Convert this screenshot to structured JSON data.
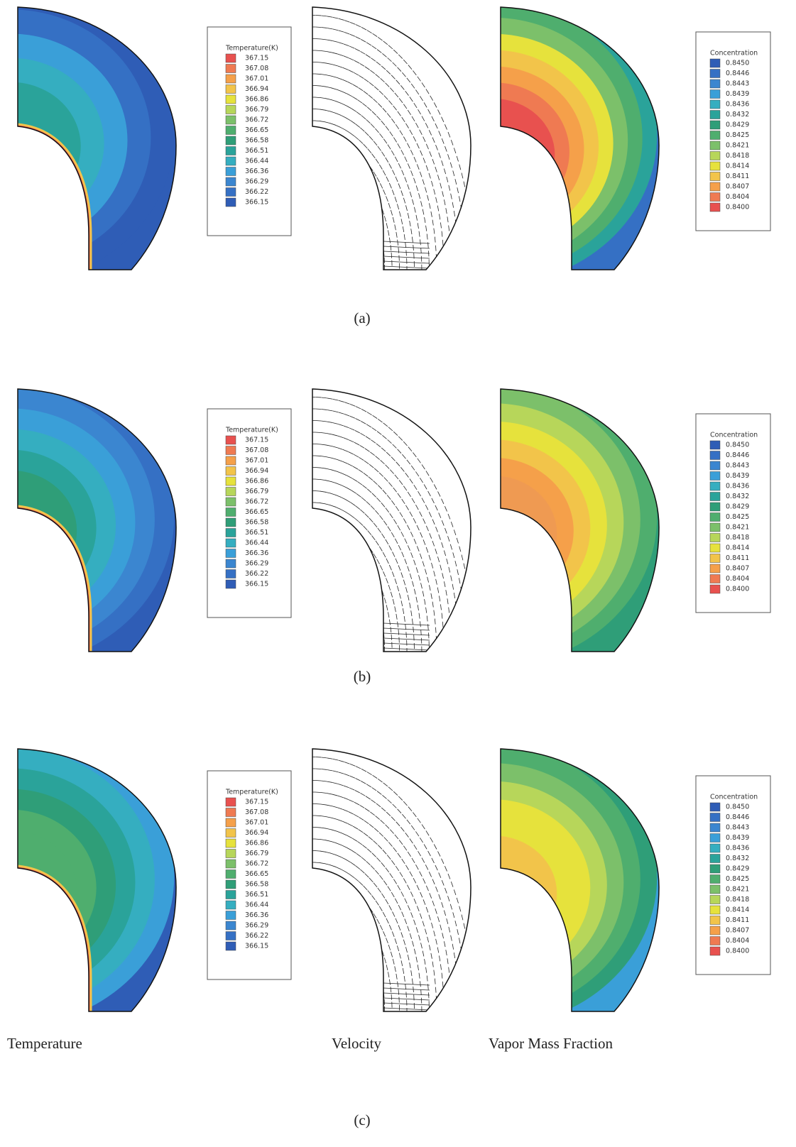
{
  "panels": [
    {
      "label": "(a)",
      "temperature_legend": {
        "title": "Temperature(K)",
        "labels": [
          "367.15",
          "367.08",
          "367.01",
          "366.94",
          "366.86",
          "366.79",
          "366.72",
          "366.65",
          "366.58",
          "366.51",
          "366.44",
          "366.36",
          "366.29",
          "366.22",
          "366.15"
        ]
      },
      "concentration_legend": {
        "title": "Concentration",
        "labels": [
          "0.8450",
          "0.8446",
          "0.8443",
          "0.8439",
          "0.8436",
          "0.8432",
          "0.8429",
          "0.8425",
          "0.8421",
          "0.8418",
          "0.8414",
          "0.8411",
          "0.8407",
          "0.8404",
          "0.8400"
        ]
      }
    },
    {
      "label": "(b)",
      "temperature_legend": {
        "title": "Temperature(K)",
        "labels": [
          "367.15",
          "367.08",
          "367.01",
          "366.94",
          "366.86",
          "366.79",
          "366.72",
          "366.65",
          "366.58",
          "366.51",
          "366.44",
          "366.36",
          "366.29",
          "366.22",
          "366.15"
        ]
      },
      "concentration_legend": {
        "title": "Concentration",
        "labels": [
          "0.8450",
          "0.8446",
          "0.8443",
          "0.8439",
          "0.8436",
          "0.8432",
          "0.8429",
          "0.8425",
          "0.8421",
          "0.8418",
          "0.8414",
          "0.8411",
          "0.8407",
          "0.8404",
          "0.8400"
        ]
      }
    },
    {
      "label": "(c)",
      "temperature_legend": {
        "title": "Temperature(K)",
        "labels": [
          "367.15",
          "367.08",
          "367.01",
          "366.94",
          "366.86",
          "366.79",
          "366.72",
          "366.65",
          "366.58",
          "366.51",
          "366.44",
          "366.36",
          "366.29",
          "366.22",
          "366.15"
        ]
      },
      "concentration_legend": {
        "title": "Concentration",
        "labels": [
          "0.8450",
          "0.8446",
          "0.8443",
          "0.8439",
          "0.8436",
          "0.8432",
          "0.8429",
          "0.8425",
          "0.8421",
          "0.8418",
          "0.8414",
          "0.8411",
          "0.8407",
          "0.8404",
          "0.8400"
        ]
      }
    }
  ],
  "column_labels": [
    "Temperature",
    "Velocity",
    "Vapor Mass Fraction"
  ]
}
